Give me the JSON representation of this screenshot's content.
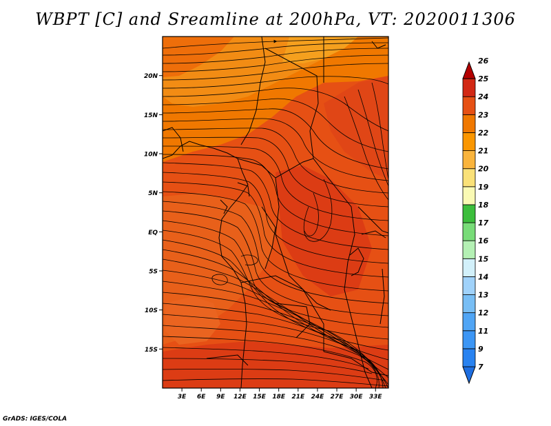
{
  "title": "WBPT [C] and Sreamline at 200hPa, VT: 2020011306",
  "credit": "GrADS: IGES/COLA",
  "map": {
    "lat_labels": [
      "20N",
      "15N",
      "10N",
      "5N",
      "EQ",
      "5S",
      "10S",
      "15S"
    ],
    "lat_values": [
      20,
      15,
      10,
      5,
      0,
      -5,
      -10,
      -15
    ],
    "lon_labels": [
      "3E",
      "6E",
      "9E",
      "12E",
      "15E",
      "18E",
      "21E",
      "24E",
      "27E",
      "30E",
      "33E"
    ],
    "lon_values": [
      3,
      6,
      9,
      12,
      15,
      18,
      21,
      24,
      27,
      30,
      33
    ],
    "lon_range": [
      0,
      35
    ],
    "lat_range": [
      -20,
      25
    ]
  },
  "colorbar": {
    "labels": [
      "7",
      "9",
      "11",
      "12",
      "13",
      "14",
      "15",
      "16",
      "17",
      "18",
      "19",
      "20",
      "21",
      "22",
      "23",
      "24",
      "25",
      "26"
    ],
    "colors": [
      "#1e6ee0",
      "#2882f0",
      "#3c96f5",
      "#50a5f5",
      "#78bef5",
      "#a0d2fa",
      "#d2f0fa",
      "#b4f0b4",
      "#78dc78",
      "#3cbe3c",
      "#fafab4",
      "#fae178",
      "#fab43c",
      "#fa9600",
      "#f07800",
      "#e65014",
      "#d22814",
      "#b40000"
    ]
  }
}
